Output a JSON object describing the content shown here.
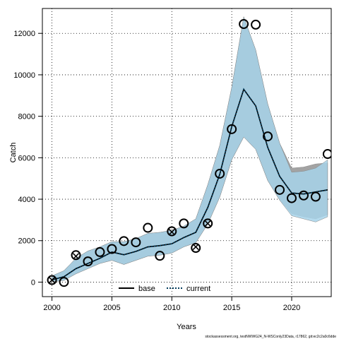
{
  "chart_data": {
    "type": "line",
    "xlabel": "Years",
    "ylabel": "Catch",
    "xlim": [
      1999.2,
      2023.3
    ],
    "ylim": [
      -700,
      13200
    ],
    "x_ticks": [
      2000,
      2005,
      2010,
      2015,
      2020
    ],
    "y_ticks": [
      0,
      2000,
      4000,
      6000,
      8000,
      10000,
      12000
    ],
    "grid": true,
    "legend_position": "bottom-center",
    "caption": "stockassessment.org, testNWWG24_N-WSConly23Data, r17862, git:ec2c2a0c6dde",
    "colors": {
      "band_base": "#a3a3a3",
      "band_current": "#a7d3ea",
      "current_line": "#003a5a",
      "base_line": "#000000"
    },
    "years": [
      2000,
      2001,
      2002,
      2003,
      2004,
      2005,
      2006,
      2007,
      2008,
      2009,
      2010,
      2011,
      2012,
      2013,
      2014,
      2015,
      2016,
      2017,
      2018,
      2019,
      2020,
      2021,
      2022,
      2023
    ],
    "series": [
      {
        "name": "base",
        "estimate": [
          110,
          260,
          650,
          900,
          1150,
          1450,
          1320,
          1480,
          1700,
          1760,
          1850,
          2150,
          2400,
          3600,
          5200,
          7500,
          9300,
          8500,
          6500,
          5100,
          4300,
          4250,
          4350,
          4450
        ],
        "lower": [
          20,
          80,
          400,
          650,
          900,
          1050,
          850,
          1050,
          1250,
          1300,
          1400,
          1700,
          1900,
          2800,
          4100,
          5900,
          7000,
          6400,
          4900,
          3950,
          3300,
          3150,
          3050,
          3250
        ],
        "upper": [
          300,
          550,
          1150,
          1500,
          1700,
          1950,
          1950,
          2100,
          2350,
          2400,
          2500,
          2700,
          3050,
          4700,
          6600,
          9400,
          12800,
          11200,
          8600,
          6700,
          5500,
          5550,
          5700,
          5750
        ]
      },
      {
        "name": "current",
        "estimate": [
          110,
          260,
          650,
          900,
          1150,
          1450,
          1320,
          1480,
          1700,
          1760,
          1850,
          2150,
          2400,
          3600,
          5200,
          7500,
          9300,
          8500,
          6500,
          5100,
          4300,
          4250,
          4350,
          4450
        ],
        "lower": [
          20,
          80,
          400,
          650,
          900,
          1050,
          850,
          1050,
          1250,
          1300,
          1400,
          1700,
          1900,
          2800,
          4100,
          5900,
          7000,
          6400,
          4900,
          3950,
          3200,
          3050,
          2900,
          3150
        ],
        "upper": [
          300,
          550,
          1150,
          1500,
          1700,
          1950,
          1950,
          2100,
          2350,
          2400,
          2500,
          2700,
          3050,
          4700,
          6600,
          9400,
          12800,
          11200,
          8600,
          6700,
          5300,
          5350,
          5500,
          5900
        ]
      }
    ],
    "observed_circles": [
      {
        "x": 2000,
        "y": 100
      },
      {
        "x": 2001,
        "y": 10
      },
      {
        "x": 2002,
        "y": 1300
      },
      {
        "x": 2003,
        "y": 1000
      },
      {
        "x": 2004,
        "y": 1450
      },
      {
        "x": 2005,
        "y": 1600
      },
      {
        "x": 2006,
        "y": 1980
      },
      {
        "x": 2007,
        "y": 1920
      },
      {
        "x": 2008,
        "y": 2620
      },
      {
        "x": 2009,
        "y": 1270
      },
      {
        "x": 2010,
        "y": 2450
      },
      {
        "x": 2011,
        "y": 2830
      },
      {
        "x": 2012,
        "y": 1650
      },
      {
        "x": 2013,
        "y": 2830
      },
      {
        "x": 2014,
        "y": 5230
      },
      {
        "x": 2015,
        "y": 7380
      },
      {
        "x": 2016,
        "y": 12450
      },
      {
        "x": 2017,
        "y": 12420
      },
      {
        "x": 2018,
        "y": 7030
      },
      {
        "x": 2019,
        "y": 4450
      },
      {
        "x": 2020,
        "y": 4050
      },
      {
        "x": 2021,
        "y": 4180
      },
      {
        "x": 2022,
        "y": 4120
      },
      {
        "x": 2023,
        "y": 6180
      }
    ],
    "observed_crosses": [
      {
        "x": 2000,
        "y": 100
      },
      {
        "x": 2002,
        "y": 1250
      },
      {
        "x": 2010,
        "y": 2420
      },
      {
        "x": 2012,
        "y": 1700
      },
      {
        "x": 2013,
        "y": 2830
      }
    ]
  },
  "legend": {
    "base_label": "base",
    "current_label": "current"
  }
}
